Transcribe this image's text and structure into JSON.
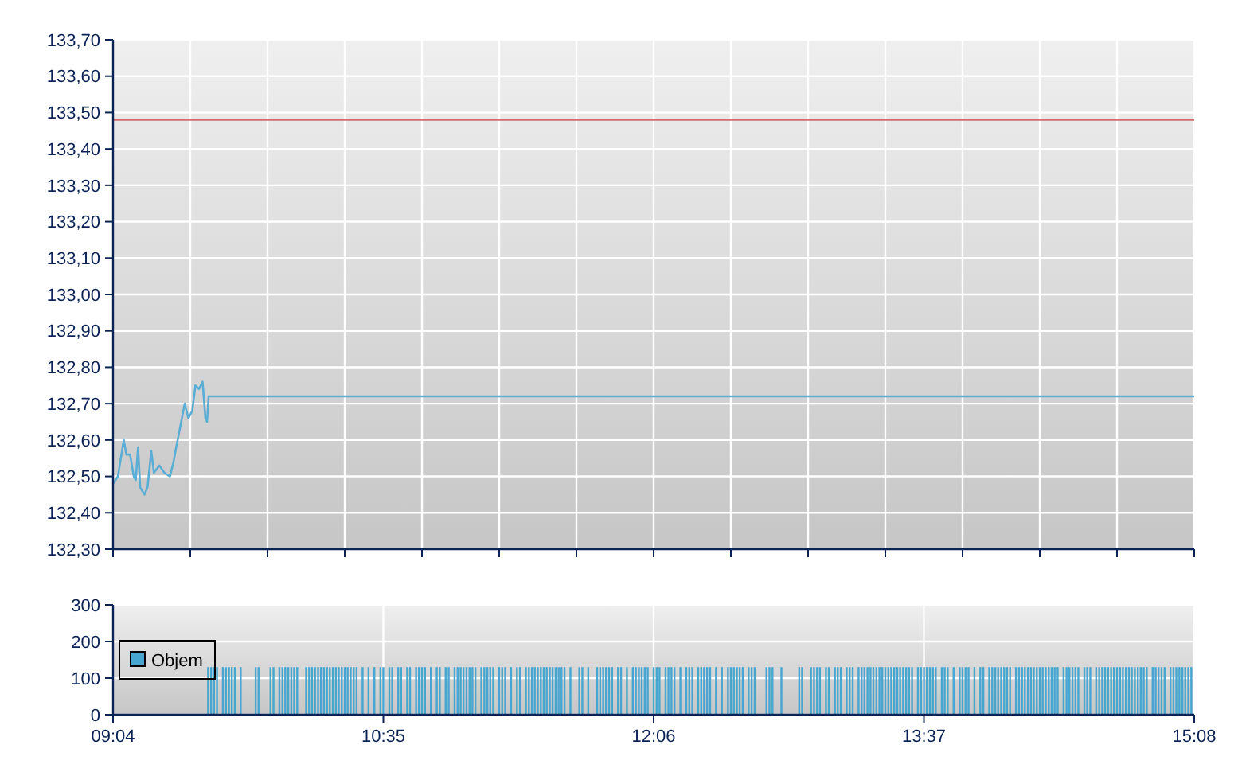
{
  "chart_data": [
    {
      "type": "line",
      "marker": "none",
      "line_style": "solid",
      "grid": true,
      "tick_labels": "y",
      "xlim": [
        9.0667,
        15.1333
      ],
      "xticks": [
        {
          "value": 9.0667,
          "label": null
        },
        {
          "value": 9.5,
          "label": null
        },
        {
          "value": 9.9333,
          "label": null
        },
        {
          "value": 10.3667,
          "label": null
        },
        {
          "value": 10.8,
          "label": null
        },
        {
          "value": 11.2333,
          "label": null
        },
        {
          "value": 11.6667,
          "label": null
        },
        {
          "value": 12.1,
          "label": null
        },
        {
          "value": 12.5333,
          "label": null
        },
        {
          "value": 12.9667,
          "label": null
        },
        {
          "value": 13.4,
          "label": null
        },
        {
          "value": 13.8333,
          "label": null
        },
        {
          "value": 14.2667,
          "label": null
        },
        {
          "value": 14.7,
          "label": null
        },
        {
          "value": 15.1333,
          "label": null
        }
      ],
      "ylim": [
        132.3,
        133.7
      ],
      "yticks": [
        {
          "value": 132.3,
          "label": "132,30"
        },
        {
          "value": 132.4,
          "label": "132,40"
        },
        {
          "value": 132.5,
          "label": "132,50"
        },
        {
          "value": 132.6,
          "label": "132,60"
        },
        {
          "value": 132.7,
          "label": "132,70"
        },
        {
          "value": 132.8,
          "label": "132,80"
        },
        {
          "value": 132.9,
          "label": "132,90"
        },
        {
          "value": 133.0,
          "label": "133,00"
        },
        {
          "value": 133.1,
          "label": "133,10"
        },
        {
          "value": 133.2,
          "label": "133,20"
        },
        {
          "value": 133.3,
          "label": "133,30"
        },
        {
          "value": 133.4,
          "label": "133,40"
        },
        {
          "value": 133.5,
          "label": "133,50"
        },
        {
          "value": 133.6,
          "label": "133,60"
        },
        {
          "value": 133.7,
          "label": "133,70"
        }
      ],
      "ref_lines": [
        {
          "axis": "y",
          "value": 133.48,
          "label": null,
          "color": "#d46a6a"
        }
      ],
      "series": [
        {
          "color": "#5aaed6",
          "x": [
            9.067,
            9.094,
            9.127,
            9.141,
            9.162,
            9.183,
            9.194,
            9.207,
            9.219,
            9.243,
            9.26,
            9.281,
            9.296,
            9.326,
            9.355,
            9.386,
            9.406,
            9.421,
            9.445,
            9.469,
            9.489,
            9.511,
            9.529,
            9.549,
            9.569,
            9.585,
            9.594,
            9.603,
            15.133
          ],
          "values": [
            132.48,
            132.5,
            132.6,
            132.56,
            132.56,
            132.5,
            132.49,
            132.58,
            132.47,
            132.45,
            132.47,
            132.57,
            132.51,
            132.53,
            132.51,
            132.5,
            132.54,
            132.58,
            132.64,
            132.7,
            132.66,
            132.68,
            132.75,
            132.74,
            132.76,
            132.66,
            132.65,
            132.72,
            132.72
          ]
        }
      ]
    },
    {
      "type": "bar",
      "grid": true,
      "legend": "left",
      "xlim": [
        9.0667,
        15.1333
      ],
      "xticks": [
        {
          "value": 9.0667,
          "label": "09:04"
        },
        {
          "value": 10.5833,
          "label": "10:35"
        },
        {
          "value": 12.1,
          "label": "12:06"
        },
        {
          "value": 13.6167,
          "label": "13:37"
        },
        {
          "value": 15.1333,
          "label": "15:08"
        }
      ],
      "ylim": [
        0,
        300
      ],
      "yticks": [
        0,
        100,
        200,
        300
      ],
      "series": [
        {
          "name": "Objem",
          "color": "#46a6d0",
          "x": [
            9.6,
            9.617,
            9.633,
            9.65,
            9.683,
            9.7,
            9.717,
            9.733,
            9.75,
            9.783,
            9.867,
            9.883,
            9.95,
            9.967,
            10.0,
            10.017,
            10.033,
            10.05,
            10.067,
            10.083,
            10.1,
            10.15,
            10.167,
            10.183,
            10.2,
            10.217,
            10.233,
            10.25,
            10.267,
            10.283,
            10.3,
            10.317,
            10.333,
            10.35,
            10.367,
            10.383,
            10.4,
            10.417,
            10.433,
            10.467,
            10.5,
            10.533,
            10.567,
            10.583,
            10.617,
            10.633,
            10.667,
            10.683,
            10.717,
            10.733,
            10.767,
            10.783,
            10.8,
            10.817,
            10.85,
            10.883,
            10.9,
            10.933,
            10.95,
            10.983,
            11.0,
            11.017,
            11.033,
            11.05,
            11.067,
            11.083,
            11.1,
            11.133,
            11.15,
            11.167,
            11.183,
            11.2,
            11.233,
            11.25,
            11.267,
            11.3,
            11.333,
            11.35,
            11.383,
            11.4,
            11.417,
            11.433,
            11.45,
            11.467,
            11.483,
            11.5,
            11.517,
            11.533,
            11.55,
            11.567,
            11.583,
            11.6,
            11.633,
            11.683,
            11.7,
            11.733,
            11.783,
            11.8,
            11.817,
            11.833,
            11.85,
            11.867,
            11.9,
            11.917,
            11.95,
            11.983,
            12.0,
            12.017,
            12.033,
            12.05,
            12.067,
            12.1,
            12.117,
            12.133,
            12.167,
            12.183,
            12.2,
            12.217,
            12.25,
            12.283,
            12.3,
            12.317,
            12.35,
            12.367,
            12.383,
            12.4,
            12.417,
            12.45,
            12.483,
            12.517,
            12.533,
            12.55,
            12.567,
            12.583,
            12.6,
            12.633,
            12.65,
            12.667,
            12.733,
            12.75,
            12.767,
            12.817,
            12.917,
            12.933,
            12.983,
            13.0,
            13.017,
            13.033,
            13.067,
            13.083,
            13.117,
            13.133,
            13.15,
            13.183,
            13.2,
            13.217,
            13.25,
            13.267,
            13.283,
            13.3,
            13.317,
            13.333,
            13.35,
            13.367,
            13.383,
            13.4,
            13.417,
            13.433,
            13.45,
            13.467,
            13.483,
            13.5,
            13.517,
            13.533,
            13.55,
            13.583,
            13.6,
            13.617,
            13.633,
            13.65,
            13.667,
            13.683,
            13.717,
            13.733,
            13.75,
            13.783,
            13.817,
            13.833,
            13.85,
            13.867,
            13.9,
            13.933,
            13.95,
            13.983,
            14.0,
            14.017,
            14.033,
            14.05,
            14.067,
            14.083,
            14.1,
            14.133,
            14.15,
            14.167,
            14.183,
            14.2,
            14.217,
            14.233,
            14.25,
            14.267,
            14.283,
            14.3,
            14.317,
            14.333,
            14.35,
            14.367,
            14.4,
            14.417,
            14.433,
            14.45,
            14.467,
            14.483,
            14.517,
            14.533,
            14.55,
            14.583,
            14.6,
            14.617,
            14.633,
            14.65,
            14.667,
            14.683,
            14.7,
            14.717,
            14.733,
            14.75,
            14.767,
            14.783,
            14.8,
            14.817,
            14.833,
            14.85,
            14.867,
            14.9,
            14.917,
            14.933,
            14.95,
            14.967,
            15.0,
            15.017,
            15.033,
            15.05,
            15.067,
            15.083,
            15.1,
            15.117
          ],
          "values": [
            130,
            130,
            130,
            130,
            130,
            130,
            130,
            130,
            130,
            130,
            130,
            130,
            130,
            130,
            130,
            130,
            130,
            130,
            130,
            130,
            130,
            130,
            130,
            130,
            130,
            130,
            130,
            130,
            130,
            130,
            130,
            130,
            130,
            130,
            130,
            130,
            130,
            130,
            130,
            130,
            130,
            130,
            130,
            130,
            130,
            130,
            130,
            130,
            130,
            130,
            130,
            130,
            130,
            130,
            130,
            130,
            130,
            130,
            130,
            130,
            130,
            130,
            130,
            130,
            130,
            130,
            130,
            130,
            130,
            130,
            130,
            130,
            130,
            130,
            130,
            130,
            130,
            130,
            130,
            130,
            130,
            130,
            130,
            130,
            130,
            130,
            130,
            130,
            130,
            130,
            130,
            130,
            130,
            130,
            130,
            130,
            130,
            130,
            130,
            130,
            130,
            130,
            130,
            130,
            130,
            130,
            130,
            130,
            130,
            130,
            130,
            130,
            130,
            130,
            130,
            130,
            130,
            130,
            130,
            130,
            130,
            130,
            130,
            130,
            130,
            130,
            130,
            130,
            130,
            130,
            130,
            130,
            130,
            130,
            130,
            130,
            130,
            130,
            130,
            130,
            130,
            130,
            130,
            130,
            130,
            130,
            130,
            130,
            130,
            130,
            130,
            130,
            130,
            130,
            130,
            130,
            130,
            130,
            130,
            130,
            130,
            130,
            130,
            130,
            130,
            130,
            130,
            130,
            130,
            130,
            130,
            130,
            130,
            130,
            130,
            130,
            130,
            130,
            130,
            130,
            130,
            130,
            130,
            130,
            130,
            130,
            130,
            130,
            130,
            130,
            130,
            130,
            130,
            130,
            130,
            130,
            130,
            130,
            130,
            130,
            130,
            130,
            130,
            130,
            130,
            130,
            130,
            130,
            130,
            130,
            130,
            130,
            130,
            130,
            130,
            130,
            130,
            130,
            130,
            130,
            130,
            130,
            130,
            130,
            130,
            130,
            130,
            130,
            130,
            130,
            130,
            130,
            130,
            130,
            130,
            130,
            130,
            130,
            130,
            130,
            130,
            130,
            130,
            130,
            130,
            130,
            130,
            130,
            130,
            130,
            130,
            130,
            130,
            130,
            130,
            130
          ]
        }
      ]
    }
  ]
}
